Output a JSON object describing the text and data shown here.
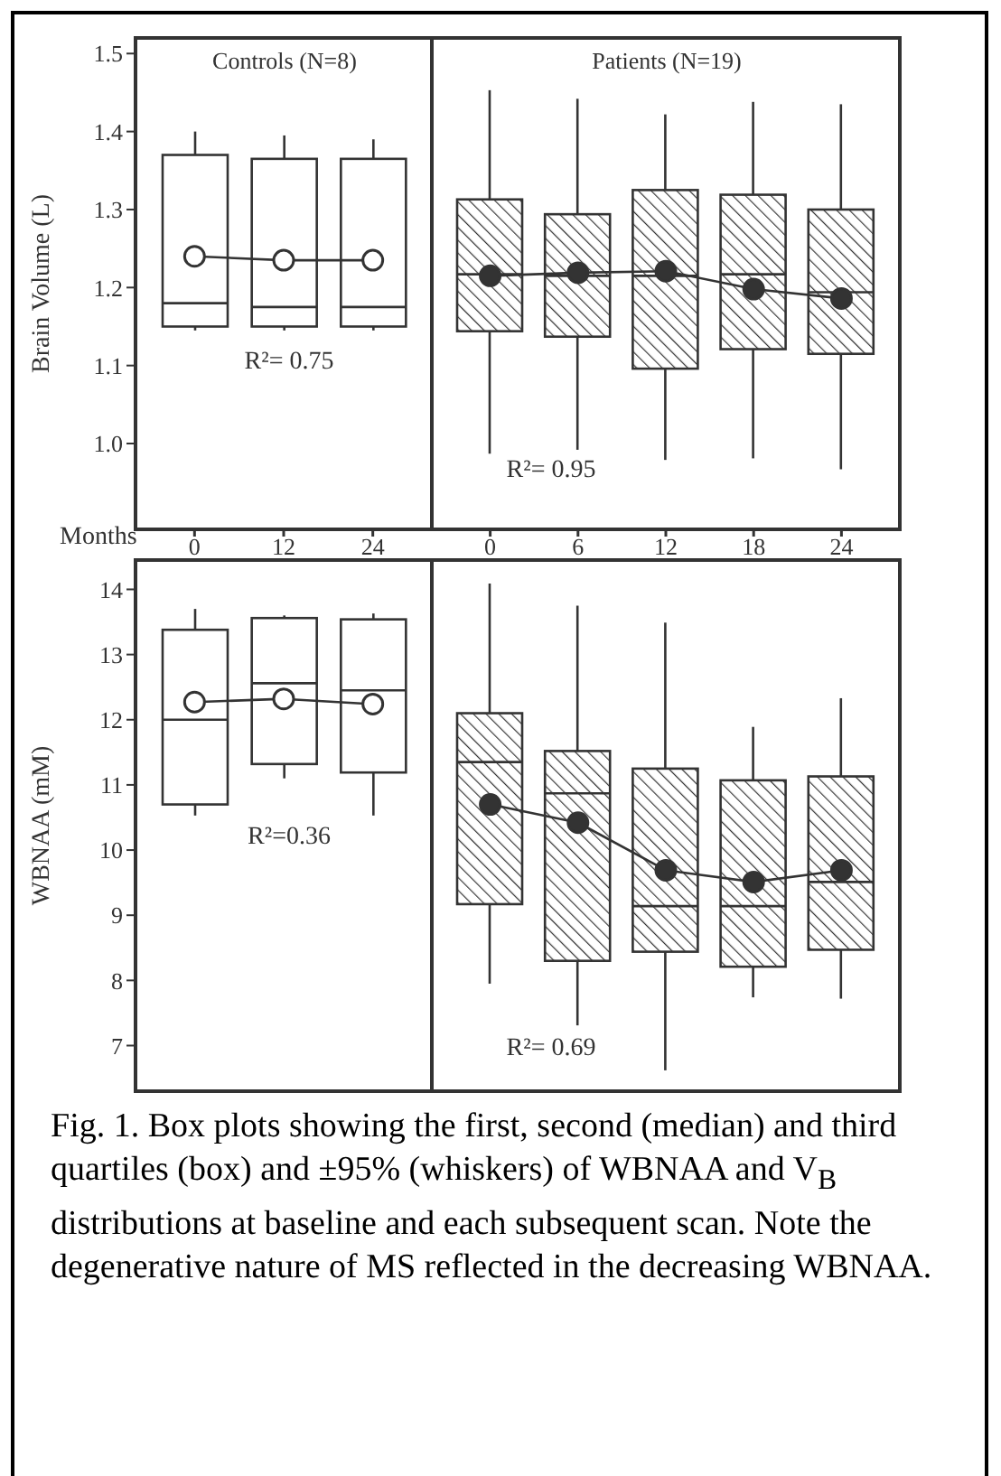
{
  "chart_data": [
    {
      "type": "box",
      "title": "Controls (N=8)",
      "xlabel": "Months",
      "ylabel": "Brain Volume (L)",
      "categories": [
        "0",
        "12",
        "24"
      ],
      "ylim": [
        0.89,
        1.52
      ],
      "yticks": [
        {
          "value": 1,
          "label": "1.0"
        },
        1.1,
        1.2,
        1.3,
        1.4,
        1.5
      ],
      "marker": "circle",
      "tick_labels": "xy",
      "annotations": [
        "R²= 0.75",
        "Fig. 1.    Box plots showing the first, second (median) and third quartiles (box) and ±95% (whiskers) of  WBNAA and V$_{B}$ distributions at baseline and each subsequent scan. Note the degenerative nature of MS reflected in the decreasing WBNAA."
      ],
      "series": [
        {
          "type": "box",
          "color": "#ffffff",
          "boxes": [
            {
              "low": 1.145,
              "q1": 1.15,
              "median": 1.18,
              "q3": 1.37,
              "high": 1.4
            },
            {
              "low": 1.145,
              "q1": 1.15,
              "median": 1.175,
              "q3": 1.365,
              "high": 1.395
            },
            {
              "low": 1.145,
              "q1": 1.15,
              "median": 1.175,
              "q3": 1.365,
              "high": 1.39
            }
          ]
        },
        {
          "type": "line",
          "color": "#333333",
          "values": [
            1.24,
            1.235,
            1.235
          ]
        }
      ]
    },
    {
      "type": "box",
      "title": "Patients (N=19)",
      "categories": [
        "0",
        "6",
        "12",
        "18",
        "24"
      ],
      "ylim": [
        0.89,
        1.52
      ],
      "marker": "circle",
      "tick_labels": "x",
      "annotations": [
        "R²= 0.95"
      ],
      "series": [
        {
          "type": "box",
          "color": "#333333",
          "boxes": [
            {
              "low": 0.987,
              "q1": 1.144,
              "median": 1.217,
              "q3": 1.313,
              "high": 1.453
            },
            {
              "low": 0.992,
              "q1": 1.137,
              "median": 1.215,
              "q3": 1.294,
              "high": 1.442
            },
            {
              "low": 0.979,
              "q1": 1.096,
              "median": 1.215,
              "q3": 1.325,
              "high": 1.422
            },
            {
              "low": 0.981,
              "q1": 1.121,
              "median": 1.217,
              "q3": 1.319,
              "high": 1.438
            },
            {
              "low": 0.967,
              "q1": 1.115,
              "median": 1.194,
              "q3": 1.3,
              "high": 1.435
            }
          ]
        },
        {
          "type": "line",
          "color": "#333333",
          "values": [
            1.215,
            1.219,
            1.221,
            1.198,
            1.186
          ]
        }
      ]
    },
    {
      "type": "box",
      "ylabel": "WBNAA (mM)",
      "categories": [
        "0",
        "12",
        "24"
      ],
      "ylim": [
        6.3,
        14.45
      ],
      "yticks": [
        7,
        8,
        9,
        10,
        11,
        12,
        13,
        14
      ],
      "marker": "circle",
      "tick_labels": "y",
      "annotations": [
        "R²=0.36"
      ],
      "series": [
        {
          "type": "box",
          "color": "#ffffff",
          "boxes": [
            {
              "low": 10.53,
              "q1": 10.7,
              "median": 12.0,
              "q3": 13.38,
              "high": 13.7
            },
            {
              "low": 11.1,
              "q1": 11.32,
              "median": 12.56,
              "q3": 13.56,
              "high": 13.6
            },
            {
              "low": 10.53,
              "q1": 11.19,
              "median": 12.45,
              "q3": 13.54,
              "high": 13.63
            }
          ]
        },
        {
          "type": "line",
          "color": "#333333",
          "values": [
            12.27,
            12.32,
            12.24
          ]
        }
      ]
    },
    {
      "type": "box",
      "categories": [
        "0",
        "6",
        "12",
        "18",
        "24"
      ],
      "ylim": [
        6.3,
        14.45
      ],
      "marker": "circle",
      "tick_labels": false,
      "annotations": [
        "R²= 0.69"
      ],
      "series": [
        {
          "type": "box",
          "color": "#333333",
          "boxes": [
            {
              "low": 7.95,
              "q1": 9.17,
              "median": 11.35,
              "q3": 12.1,
              "high": 14.09
            },
            {
              "low": 7.31,
              "q1": 8.3,
              "median": 10.87,
              "q3": 11.52,
              "high": 13.75
            },
            {
              "low": 6.62,
              "q1": 8.44,
              "median": 9.14,
              "q3": 11.25,
              "high": 13.49
            },
            {
              "low": 7.74,
              "q1": 8.21,
              "median": 9.14,
              "q3": 11.07,
              "high": 11.89
            },
            {
              "low": 7.72,
              "q1": 8.47,
              "median": 9.51,
              "q3": 11.13,
              "high": 12.33
            }
          ]
        },
        {
          "type": "line",
          "color": "#333333",
          "values": [
            10.7,
            10.42,
            9.69,
            9.51,
            9.69
          ]
        }
      ]
    }
  ]
}
